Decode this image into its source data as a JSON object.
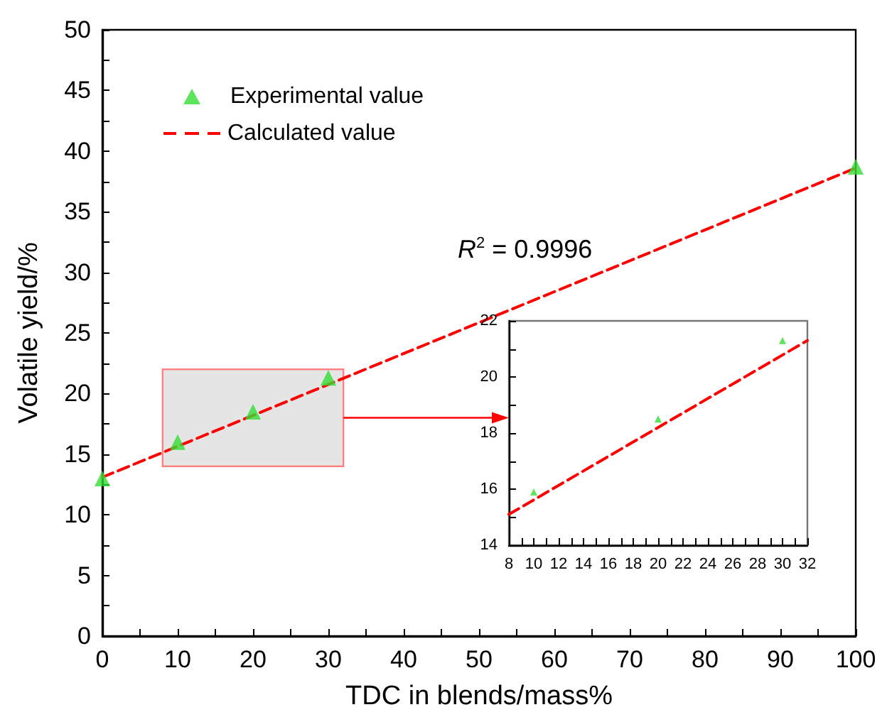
{
  "chart_data": [
    {
      "type": "scatter",
      "xlabel": "TDC in blends/mass%",
      "ylabel": "Volatile yield/%",
      "annotations": [
        "R$^{2}$ = 0.9996"
      ],
      "xlim": [
        0,
        100
      ],
      "ylim": [
        0,
        50
      ],
      "xticks": [
        0,
        {
          "value": 5,
          "label": null
        },
        10,
        {
          "value": 15,
          "label": null
        },
        20,
        {
          "value": 25,
          "label": null
        },
        30,
        {
          "value": 35,
          "label": null
        },
        40,
        {
          "value": 45,
          "label": null
        },
        50,
        {
          "value": 55,
          "label": null
        },
        60,
        {
          "value": 65,
          "label": null
        },
        70,
        {
          "value": 75,
          "label": null
        },
        80,
        {
          "value": 85,
          "label": null
        },
        90,
        {
          "value": 95,
          "label": null
        },
        100
      ],
      "yticks": [
        0,
        {
          "value": 2.5,
          "label": null
        },
        5,
        {
          "value": 7.5,
          "label": null
        },
        10,
        {
          "value": 12.5,
          "label": null
        },
        15,
        {
          "value": 17.5,
          "label": null
        },
        20,
        {
          "value": 22.5,
          "label": null
        },
        25,
        {
          "value": 27.5,
          "label": null
        },
        30,
        {
          "value": 32.5,
          "label": null
        },
        35,
        {
          "value": 37.5,
          "label": null
        },
        40,
        {
          "value": 42.5,
          "label": null
        },
        45,
        {
          "value": 47.5,
          "label": null
        },
        50
      ],
      "grid": false,
      "legend": "top left",
      "series": [
        {
          "name": "Experimental value",
          "marker": "triangle",
          "color": "#33dd33",
          "x": [
            0,
            10,
            20,
            30,
            100
          ],
          "values": [
            13,
            16,
            18.5,
            21.3,
            38.7
          ]
        },
        {
          "name": "Calculated value",
          "type": "line",
          "marker": "none",
          "line_style": "dashed",
          "color": "#ff0000",
          "x": [
            0,
            100
          ],
          "values": [
            13.1,
            38.6
          ]
        }
      ]
    },
    {
      "type": "scatter",
      "xlim": [
        8,
        32
      ],
      "ylim": [
        14,
        22
      ],
      "xticks": [
        8,
        {
          "value": 9,
          "label": null
        },
        10,
        {
          "value": 11,
          "label": null
        },
        12,
        {
          "value": 13,
          "label": null
        },
        14,
        {
          "value": 15,
          "label": null
        },
        16,
        {
          "value": 17,
          "label": null
        },
        18,
        {
          "value": 19,
          "label": null
        },
        20,
        {
          "value": 21,
          "label": null
        },
        22,
        {
          "value": 23,
          "label": null
        },
        24,
        {
          "value": 25,
          "label": null
        },
        26,
        {
          "value": 27,
          "label": null
        },
        28,
        {
          "value": 29,
          "label": null
        },
        30,
        {
          "value": 31,
          "label": null
        },
        32
      ],
      "yticks": [
        14,
        {
          "value": 15,
          "label": null
        },
        16,
        {
          "value": 17,
          "label": null
        },
        18,
        {
          "value": 19,
          "label": null
        },
        20,
        {
          "value": 21,
          "label": null
        },
        22
      ],
      "grid": false,
      "series": [
        {
          "marker": "triangle",
          "color": "#33dd33",
          "x": [
            10,
            20,
            30
          ],
          "values": [
            15.9,
            18.5,
            21.3
          ]
        },
        {
          "type": "line",
          "marker": "none",
          "line_style": "dashed",
          "color": "#ff0000",
          "x": [
            8,
            32
          ],
          "values": [
            15.1,
            21.3
          ]
        }
      ]
    }
  ]
}
